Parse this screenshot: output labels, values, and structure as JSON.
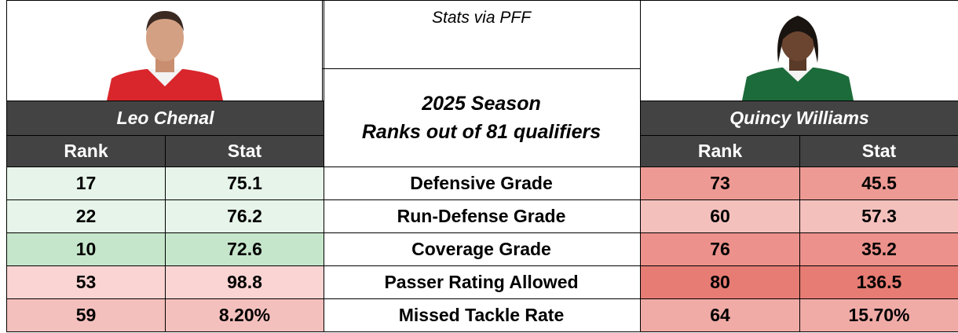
{
  "header": {
    "note": "Stats via PFF",
    "title": [
      "2025 Season",
      "Ranks out of 81 qualifiers"
    ]
  },
  "players": [
    {
      "name": "Leo Chenal",
      "columns": [
        "Rank",
        "Stat"
      ]
    },
    {
      "name": "Quincy Williams",
      "columns": [
        "Rank",
        "Stat"
      ]
    }
  ],
  "table": {
    "rows": [
      {
        "metric": "Defensive Grade",
        "left": [
          17,
          75.1
        ],
        "right": [
          73,
          45.5
        ]
      },
      {
        "metric": "Run-Defense Grade",
        "left": [
          22,
          76.2
        ],
        "right": [
          60,
          57.3
        ]
      },
      {
        "metric": "Coverage Grade",
        "left": [
          10,
          72.6
        ],
        "right": [
          76,
          35.2
        ]
      },
      {
        "metric": "Passer Rating Allowed",
        "left": [
          53,
          98.8
        ],
        "right": [
          80,
          136.5
        ]
      },
      {
        "metric": "Missed Tackle Rate",
        "left": [
          59,
          "8.20%"
        ],
        "right": [
          64,
          "15.70%"
        ]
      }
    ]
  }
}
